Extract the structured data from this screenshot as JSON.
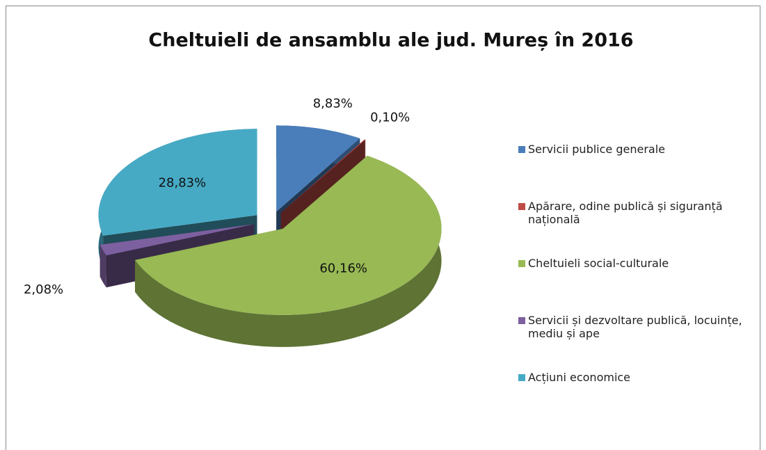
{
  "chart_data": {
    "type": "pie3d",
    "title": "Cheltuieli de ansamblu ale jud. Mureș în 2016",
    "categories": [
      "Servicii publice generale",
      "Apărare, odine publică și siguranță națională",
      "Cheltuieli social-culturale",
      "Servicii și dezvoltare publică, locuințe, mediu și ape",
      "Acțiuni economice"
    ],
    "values": [
      8.83,
      0.1,
      60.16,
      2.08,
      28.83
    ],
    "value_labels": [
      "8,83%",
      "0,10%",
      "60,16%",
      "2,08%",
      "28,83%"
    ],
    "colors": [
      "#4a7ebb",
      "#be4b48",
      "#98b954",
      "#7d60a0",
      "#46aac5"
    ],
    "legend": "right"
  }
}
